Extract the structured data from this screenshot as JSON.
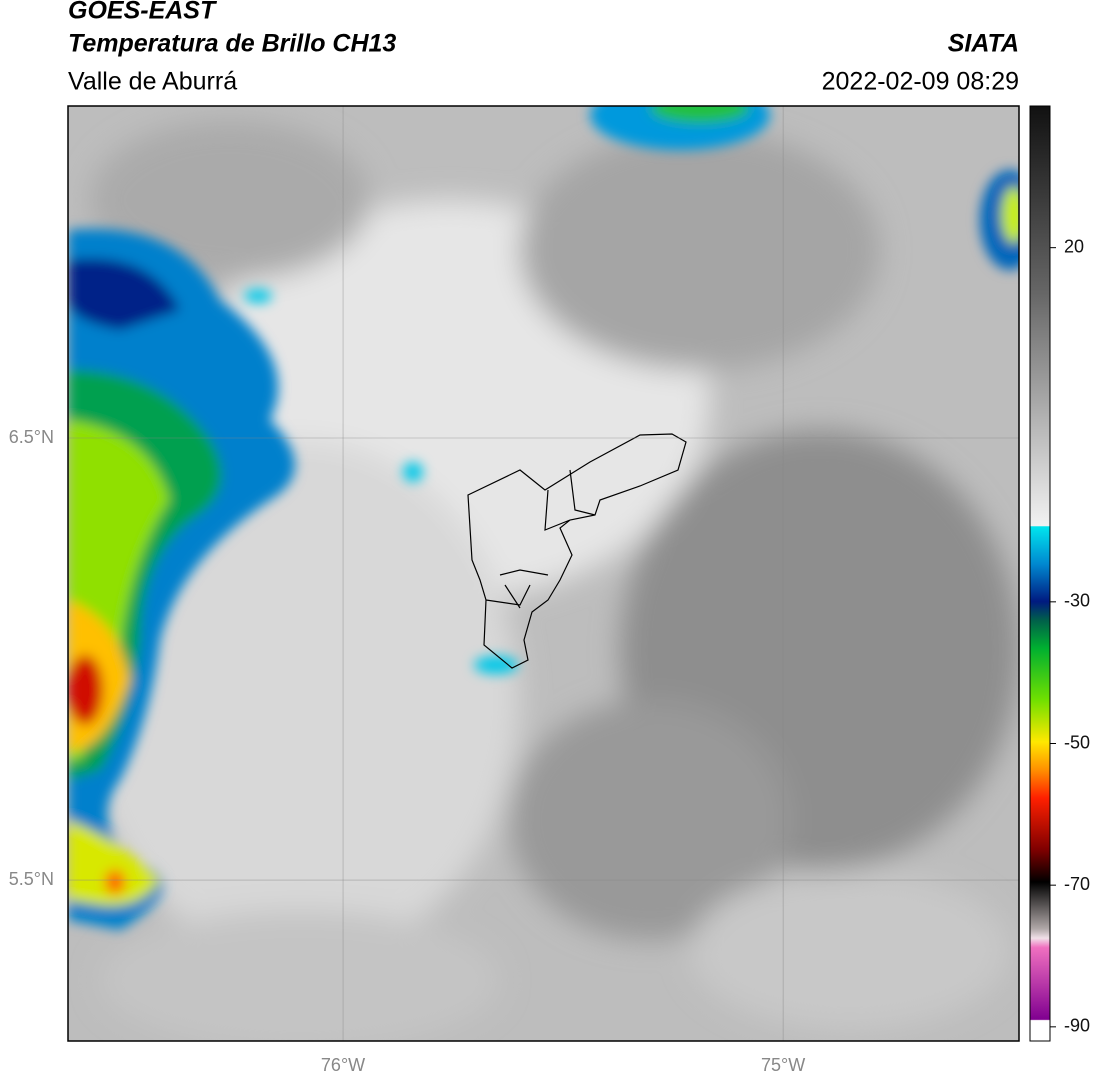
{
  "header": {
    "title": "GOES-EAST",
    "subtitle": "Temperatura de Brillo CH13",
    "region": "Valle de Aburrá",
    "source": "SIATA",
    "datetime": "2022-02-09 08:29"
  },
  "map": {
    "lonlim": [
      -76.625,
      -74.464
    ],
    "latlim": [
      5.136,
      7.251
    ],
    "lonticks": [
      {
        "value": -76,
        "label": "76°W"
      },
      {
        "value": -75,
        "label": "75°W"
      }
    ],
    "latticks": [
      {
        "value": 6.5,
        "label": "6.5°N"
      },
      {
        "value": 5.5,
        "label": "5.5°N"
      }
    ]
  },
  "colorbar": {
    "lim": [
      -92,
      40
    ],
    "ticks": [
      20,
      -30,
      -50,
      -70,
      -90
    ]
  }
}
